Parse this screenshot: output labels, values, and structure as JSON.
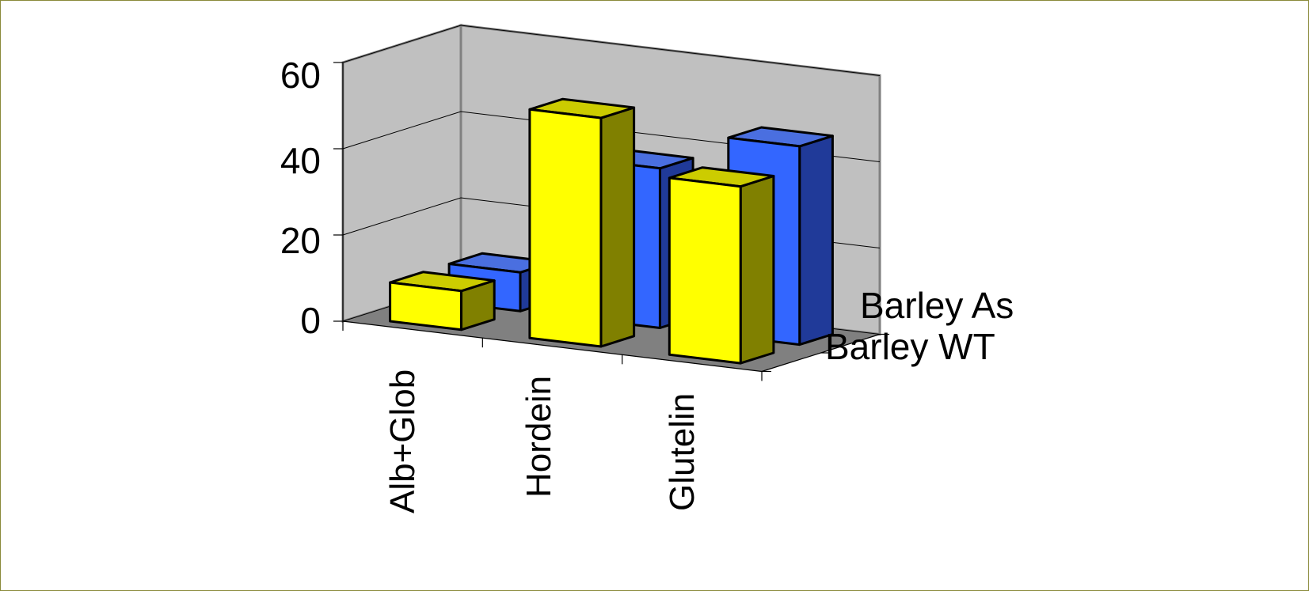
{
  "chart_data": {
    "type": "bar",
    "title": "",
    "xlabel": "",
    "ylabel": "",
    "categories": [
      "Alb+Glob",
      "Hordein",
      "Glutelin"
    ],
    "series": [
      {
        "name": "Barley WT",
        "values": [
          9,
          53,
          41
        ]
      },
      {
        "name": "Barley As",
        "values": [
          9,
          37,
          46
        ]
      }
    ],
    "ylim": [
      0,
      60
    ],
    "yticks": [
      "0",
      "20",
      "40",
      "60"
    ],
    "grid": true,
    "legend": "right (series depth axis)",
    "colors": {
      "front_series": "#ffff00",
      "back_series": "#3366ff",
      "walls": "#c0c0c0",
      "floor": "#808080"
    }
  }
}
